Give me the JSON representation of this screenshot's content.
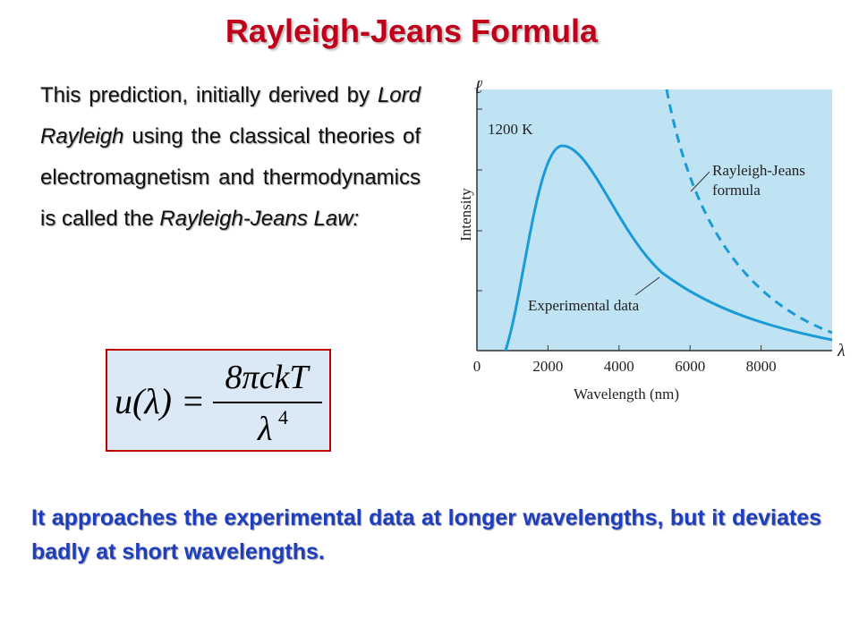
{
  "title": "Rayleigh-Jeans Formula",
  "intro": {
    "parts": [
      "This prediction, initially derived by ",
      "Lord Rayleigh",
      " using  the classical theories of electromagnetism and thermodynamics  is called the ",
      "Rayleigh-Jeans Law:"
    ]
  },
  "equation": {
    "lhs": "u(λ) =",
    "numerator": "8πckT",
    "denominator": "λ",
    "exponent": "4"
  },
  "figure": {
    "y_symbol": "ℓ",
    "y_label": "Intensity",
    "temperature": "1200 K",
    "curve_labels": [
      "Rayleigh-Jeans",
      "formula",
      "Experimental data"
    ],
    "x_symbol": "λ",
    "x_label": "Wavelength (nm)",
    "xlim": [
      0,
      10000
    ],
    "xticks": [
      0,
      2000,
      4000,
      6000,
      8000
    ]
  },
  "bottom_text": "It approaches the experimental data at longer wavelengths, but it deviates badly at short wavelengths."
}
